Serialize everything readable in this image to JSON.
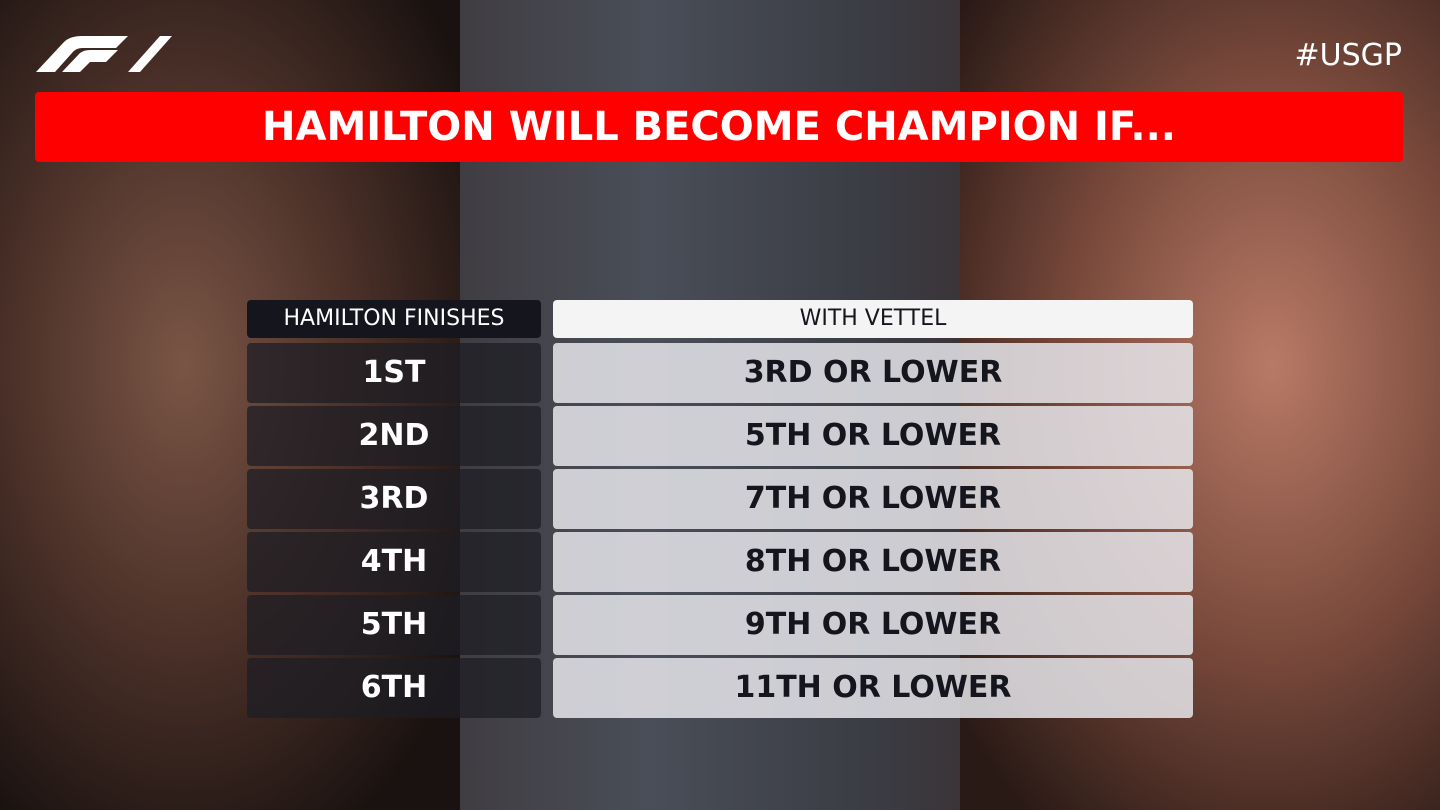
{
  "header": {
    "hashtag": "#USGP",
    "title": "HAMILTON WILL BECOME CHAMPION IF..."
  },
  "table": {
    "columns": [
      "HAMILTON FINISHES",
      "WITH VETTEL"
    ],
    "rows": [
      [
        "1ST",
        "3RD OR LOWER"
      ],
      [
        "2ND",
        "5TH OR LOWER"
      ],
      [
        "3RD",
        "7TH OR LOWER"
      ],
      [
        "4TH",
        "8TH OR LOWER"
      ],
      [
        "5TH",
        "9TH OR LOWER"
      ],
      [
        "6TH",
        "11TH OR LOWER"
      ]
    ]
  }
}
